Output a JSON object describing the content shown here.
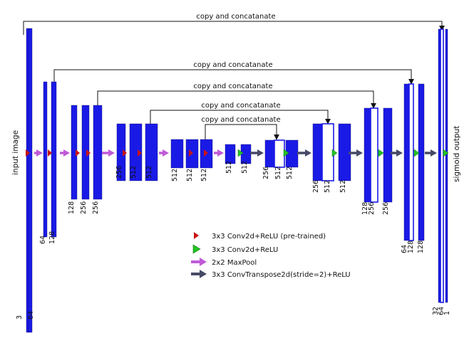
{
  "colors": {
    "block": "#1a1ae6",
    "block_outline": "#0b0b70",
    "conv_pretrained": "#c81414",
    "conv": "#22c422",
    "maxpool": "#c05ad8",
    "upconv": "#474a66",
    "skip": "#111111"
  },
  "labels": {
    "input": "input image",
    "output": "sigmoid output",
    "skip": "copy and concatanate"
  },
  "legend": {
    "conv_pretrained": "3x3 Conv2d+ReLU (pre-trained)",
    "conv": "3x3 Conv2d+ReLU",
    "maxpool": "2x2 MaxPool",
    "upconv": "3x3 ConvTranspose2d(stride=2)+ReLU"
  },
  "blocks": [
    {
      "label": "3",
      "kind": "filled"
    },
    {
      "label": "64",
      "kind": "filled"
    },
    {
      "label": "64",
      "kind": "filled"
    },
    {
      "label": "128",
      "kind": "filled"
    },
    {
      "label": "128",
      "kind": "filled"
    },
    {
      "label": "256",
      "kind": "filled"
    },
    {
      "label": "256",
      "kind": "filled"
    },
    {
      "label": "256",
      "kind": "filled"
    },
    {
      "label": "512",
      "kind": "filled"
    },
    {
      "label": "512",
      "kind": "filled"
    },
    {
      "label": "512",
      "kind": "filled"
    },
    {
      "label": "512",
      "kind": "filled"
    },
    {
      "label": "512",
      "kind": "filled"
    },
    {
      "label": "512",
      "kind": "filled"
    },
    {
      "label": "512",
      "kind": "filled"
    },
    {
      "label": "256",
      "kind": "filled"
    },
    {
      "label": "512",
      "kind": "hollow"
    },
    {
      "label": "512",
      "kind": "filled"
    },
    {
      "label": "256",
      "kind": "filled"
    },
    {
      "label": "512",
      "kind": "hollow"
    },
    {
      "label": "512",
      "kind": "filled"
    },
    {
      "label": "128",
      "kind": "filled"
    },
    {
      "label": "256",
      "kind": "hollow"
    },
    {
      "label": "256",
      "kind": "filled"
    },
    {
      "label": "64",
      "kind": "filled"
    },
    {
      "label": "128",
      "kind": "hollow"
    },
    {
      "label": "128",
      "kind": "filled"
    },
    {
      "label": "32",
      "kind": "filled"
    },
    {
      "label": "64",
      "kind": "hollow"
    },
    {
      "label": "1",
      "kind": "filled"
    }
  ],
  "operations": [
    "conv_pretrained",
    "maxpool",
    "conv_pretrained",
    "maxpool",
    "conv_pretrained",
    "conv_pretrained",
    "maxpool",
    "conv_pretrained",
    "conv_pretrained",
    "maxpool",
    "conv_pretrained",
    "conv_pretrained",
    "maxpool",
    "conv",
    "upconv",
    "conv",
    "upconv",
    "conv",
    "upconv",
    "conv",
    "upconv",
    "conv",
    "upconv",
    "conv"
  ],
  "skip_connections": [
    {
      "label": "copy and concatanate"
    },
    {
      "label": "copy and concatanate"
    },
    {
      "label": "copy and concatanate"
    },
    {
      "label": "copy and concatanate"
    },
    {
      "label": "copy and concatanate"
    }
  ]
}
